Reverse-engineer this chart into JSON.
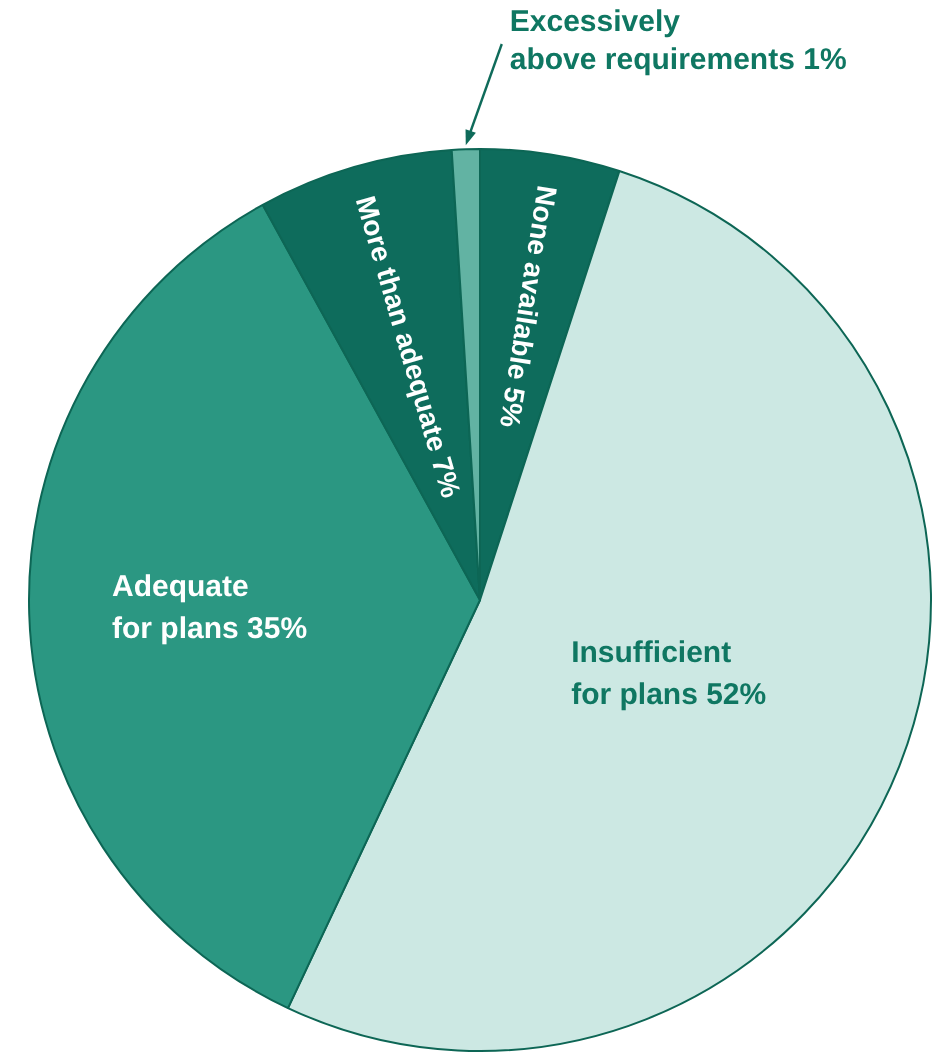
{
  "chart_data": {
    "type": "pie",
    "categories": [
      "None available",
      "Insufficient for plans",
      "Adequate for plans",
      "More than adequate",
      "Excessively above requirements"
    ],
    "values": [
      5,
      52,
      35,
      7,
      1
    ],
    "colors": [
      "#0e6c5c",
      "#cce8e3",
      "#2b9782",
      "#0e6c5c",
      "#62b3a3"
    ],
    "value_labels": [
      "5%",
      "52%",
      "35%",
      "7%",
      "1%"
    ]
  }
}
